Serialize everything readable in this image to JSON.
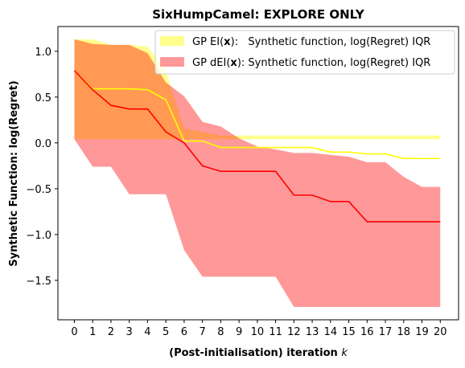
{
  "chart_data": {
    "type": "line",
    "title": "SixHumpCamel: EXPLORE ONLY",
    "xlabel": "(Post-initialisation) iteration",
    "xlabel_var": "k",
    "ylabel": "Synthetic Function: log(Regret)",
    "x": [
      0,
      1,
      2,
      3,
      4,
      5,
      6,
      7,
      8,
      9,
      10,
      11,
      12,
      13,
      14,
      15,
      16,
      17,
      18,
      19,
      20
    ],
    "xlim": [
      -0.9,
      21.0
    ],
    "ylim": [
      -1.93,
      1.27
    ],
    "yticks": [
      -1.5,
      -1.0,
      -0.5,
      0.0,
      0.5,
      1.0
    ],
    "ytick_labels": [
      "−1.5",
      "−1.0",
      "−0.5",
      "0.0",
      "0.5",
      "1.0"
    ],
    "xtick_labels": [
      "0",
      "1",
      "2",
      "3",
      "4",
      "5",
      "6",
      "7",
      "8",
      "9",
      "10",
      "11",
      "12",
      "13",
      "14",
      "15",
      "16",
      "17",
      "18",
      "19",
      "20"
    ],
    "legend_position": "top-right",
    "grid": false,
    "series": [
      {
        "name": "GP EI",
        "legend_prefix": "GP EI(",
        "legend_bold": "x",
        "legend_suffix": "):   Synthetic function, log(Regret) IQR",
        "line_color": "#ffff00",
        "fill_color": "#ffff00",
        "fill_opacity": 0.45,
        "median": [
          0.79,
          0.59,
          0.59,
          0.59,
          0.58,
          0.47,
          0.02,
          0.02,
          -0.05,
          -0.05,
          -0.05,
          -0.05,
          -0.05,
          -0.05,
          -0.1,
          -0.1,
          -0.12,
          -0.12,
          -0.17,
          -0.17,
          -0.17
        ],
        "lower": [
          0.04,
          0.04,
          0.04,
          0.04,
          0.04,
          0.04,
          0.04,
          0.04,
          0.04,
          0.04,
          0.04,
          0.04,
          0.04,
          0.04,
          0.04,
          0.04,
          0.04,
          0.04,
          0.04,
          0.04,
          0.04
        ],
        "upper": [
          1.13,
          1.13,
          1.07,
          1.07,
          1.05,
          0.78,
          0.16,
          0.12,
          0.08,
          0.08,
          0.08,
          0.08,
          0.08,
          0.08,
          0.08,
          0.08,
          0.08,
          0.08,
          0.08,
          0.08,
          0.08
        ]
      },
      {
        "name": "GP dEI",
        "legend_prefix": "GP dEI(",
        "legend_bold": "x",
        "legend_suffix": "): Synthetic function, log(Regret) IQR",
        "line_color": "#ff0000",
        "fill_color": "#ff0000",
        "fill_opacity": 0.4,
        "median": [
          0.79,
          0.58,
          0.41,
          0.37,
          0.37,
          0.12,
          0.0,
          -0.25,
          -0.31,
          -0.31,
          -0.31,
          -0.31,
          -0.57,
          -0.57,
          -0.64,
          -0.64,
          -0.86,
          -0.86,
          -0.86,
          -0.86,
          -0.86
        ],
        "lower": [
          0.04,
          -0.26,
          -0.26,
          -0.56,
          -0.56,
          -0.56,
          -1.17,
          -1.46,
          -1.46,
          -1.46,
          -1.46,
          -1.46,
          -1.79,
          -1.79,
          -1.79,
          -1.79,
          -1.79,
          -1.79,
          -1.79,
          -1.79,
          -1.79
        ],
        "upper": [
          1.13,
          1.08,
          1.07,
          1.07,
          0.98,
          0.66,
          0.51,
          0.23,
          0.18,
          0.05,
          -0.04,
          -0.07,
          -0.11,
          -0.11,
          -0.13,
          -0.15,
          -0.21,
          -0.21,
          -0.37,
          -0.48,
          -0.48
        ]
      }
    ]
  }
}
